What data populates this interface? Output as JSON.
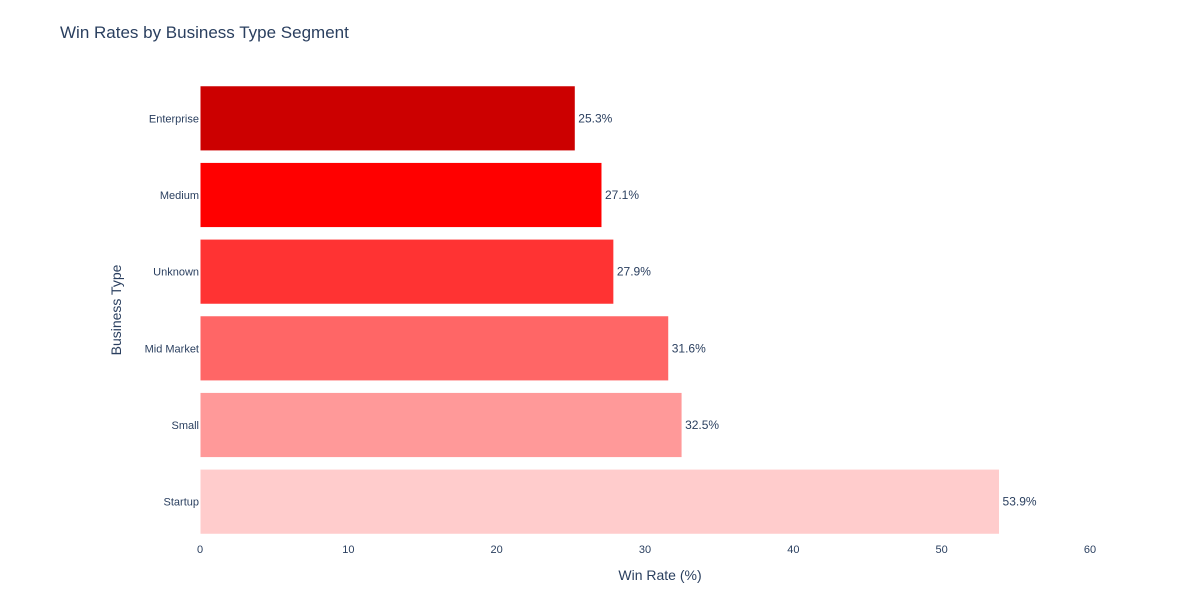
{
  "chart_data": {
    "type": "bar",
    "orientation": "horizontal",
    "title": "Win Rates by Business Type Segment",
    "xlabel": "Win Rate (%)",
    "ylabel": "Business Type",
    "xlim": [
      0,
      60
    ],
    "x_ticks": [
      0,
      10,
      20,
      30,
      40,
      50,
      60
    ],
    "grid": false,
    "legend": "none",
    "categories": [
      "Enterprise",
      "Medium",
      "Unknown",
      "Mid Market",
      "Small",
      "Startup"
    ],
    "values": [
      25.3,
      27.1,
      27.9,
      31.6,
      32.5,
      53.9
    ],
    "data_labels": [
      "25.3%",
      "27.1%",
      "27.9%",
      "31.6%",
      "32.5%",
      "53.9%"
    ],
    "colors": [
      "#cc0000",
      "#ff0000",
      "#ff3333",
      "#ff6666",
      "#ff9999",
      "#ffcccc"
    ]
  }
}
